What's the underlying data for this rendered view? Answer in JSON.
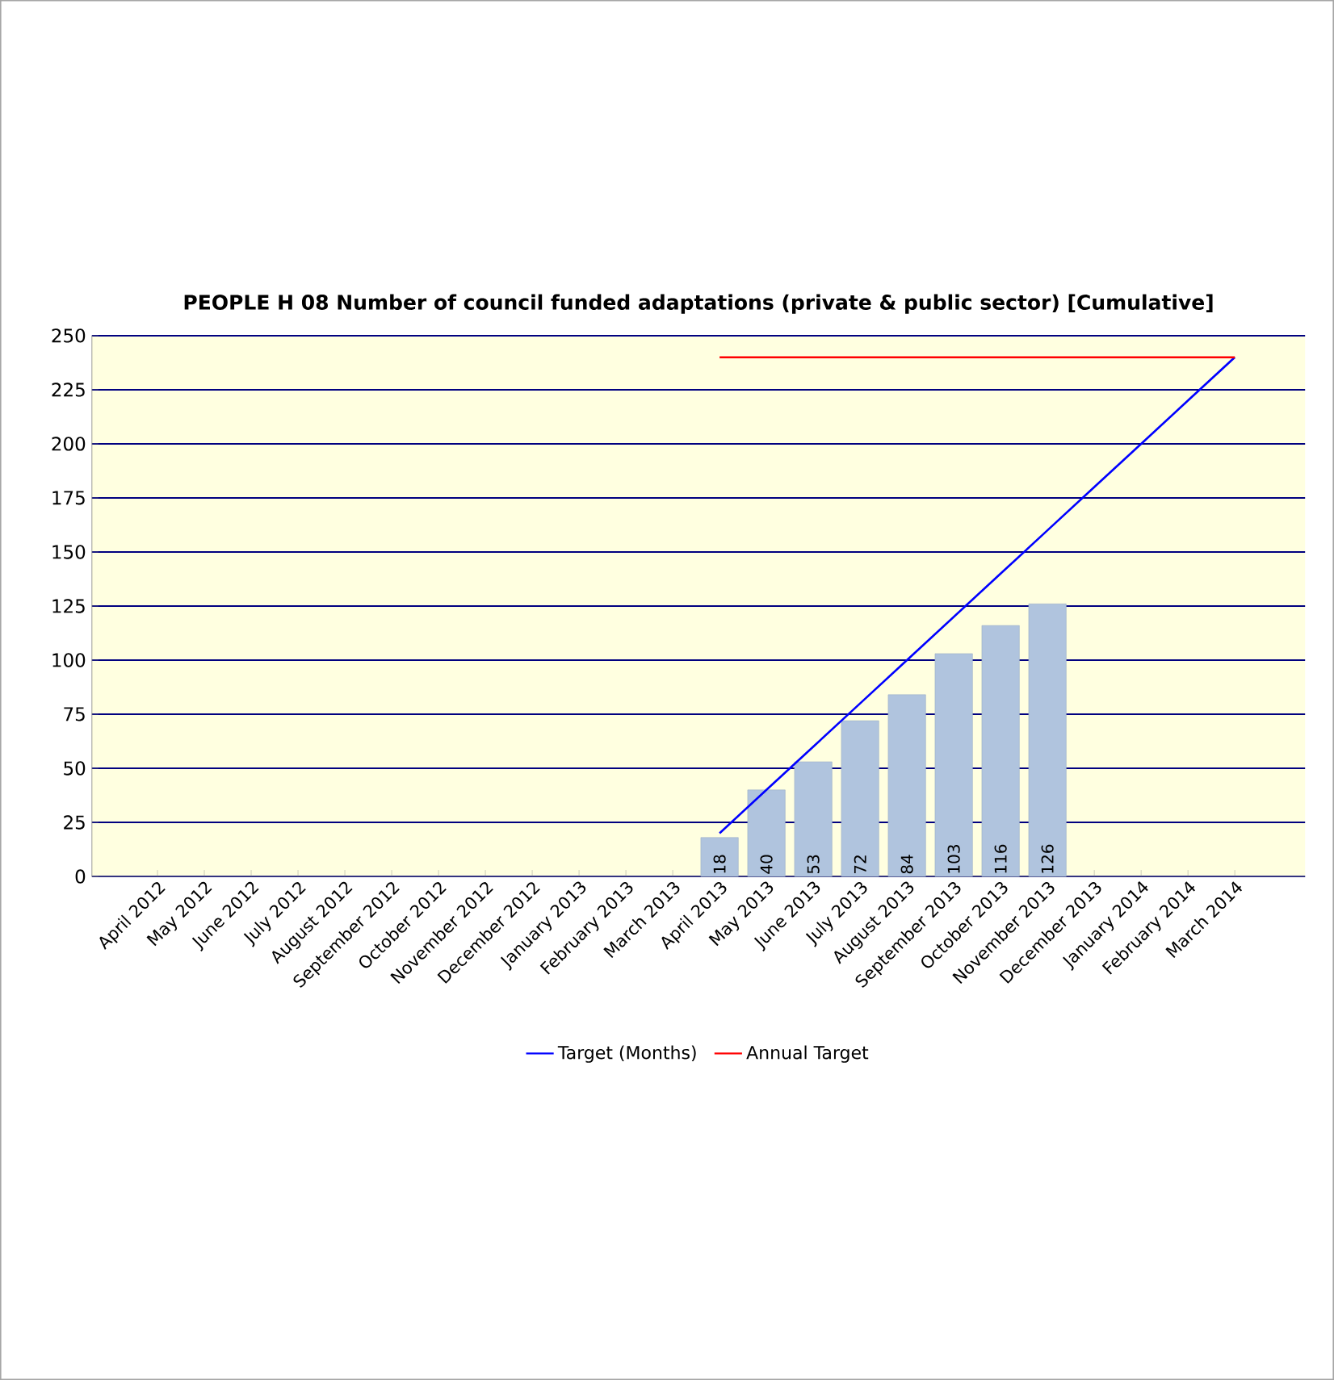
{
  "chart_data": {
    "type": "bar",
    "title": "PEOPLE H 08 Number of council funded adaptations (private & public sector) [Cumulative]",
    "categories": [
      "April 2012",
      "May 2012",
      "June 2012",
      "July 2012",
      "August 2012",
      "September 2012",
      "October 2012",
      "November 2012",
      "December 2012",
      "January 2013",
      "February 2013",
      "March 2013",
      "April 2013",
      "May 2013",
      "June 2013",
      "July 2013",
      "August 2013",
      "September 2013",
      "October 2013",
      "November 2013",
      "December 2013",
      "January 2014",
      "February 2014",
      "March 2014"
    ],
    "series": [
      {
        "color": "#b0c4de",
        "values": [
          null,
          null,
          null,
          null,
          null,
          null,
          null,
          null,
          null,
          null,
          null,
          null,
          18,
          40,
          53,
          72,
          84,
          103,
          116,
          126,
          null,
          null,
          null,
          null
        ],
        "value_labels": [
          null,
          null,
          null,
          null,
          null,
          null,
          null,
          null,
          null,
          null,
          null,
          null,
          "18",
          "40",
          "53",
          "72",
          "84",
          "103",
          "116",
          "126",
          null,
          null,
          null,
          null
        ]
      },
      {
        "type": "line",
        "name": "Target (Months)",
        "color": "#0000ff",
        "values": [
          null,
          null,
          null,
          null,
          null,
          null,
          null,
          null,
          null,
          null,
          null,
          null,
          20,
          40,
          60,
          80,
          100,
          120,
          140,
          160,
          180,
          200,
          220,
          240
        ]
      },
      {
        "type": "line",
        "name": "Annual Target",
        "color": "#ff0000",
        "values": [
          null,
          null,
          null,
          null,
          null,
          null,
          null,
          null,
          null,
          null,
          null,
          null,
          240,
          240,
          240,
          240,
          240,
          240,
          240,
          240,
          240,
          240,
          240,
          240
        ]
      }
    ],
    "ylim": [
      0,
      250
    ],
    "yticks": [
      0,
      25,
      50,
      75,
      100,
      125,
      150,
      175,
      200,
      225,
      250
    ],
    "grid": "y",
    "legend": "bottom"
  }
}
